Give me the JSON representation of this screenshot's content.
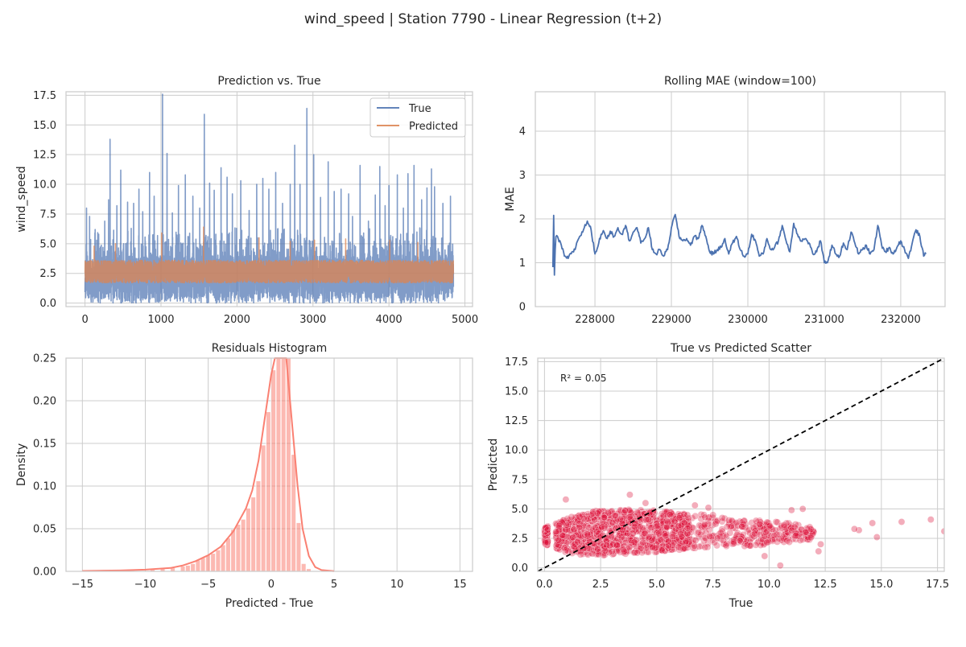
{
  "figure": {
    "suptitle": "wind_speed | Station 7790 - Linear Regression (t+2)"
  },
  "chart_data": [
    {
      "type": "line",
      "title": "Prediction vs. True",
      "xlabel": "",
      "ylabel": "wind_speed",
      "xlim": [
        -250,
        5100
      ],
      "ylim": [
        -0.3,
        17.8
      ],
      "xticks": [
        0,
        1000,
        2000,
        3000,
        4000,
        5000
      ],
      "xticklabels": [
        "0",
        "1000",
        "2000",
        "3000",
        "4000",
        "5000"
      ],
      "yticks": [
        0,
        2.5,
        5,
        7.5,
        10,
        12.5,
        15,
        17.5
      ],
      "yticklabels": [
        "0.0",
        "2.5",
        "5.0",
        "7.5",
        "10.0",
        "12.5",
        "15.0",
        "17.5"
      ],
      "grid": true,
      "legend": "upper right",
      "n_points": 4850,
      "series": [
        {
          "name": "True",
          "color": "#4c72b0",
          "peaks": [
            [
              20,
              8.0
            ],
            [
              60,
              7.3
            ],
            [
              180,
              5.8
            ],
            [
              260,
              6.9
            ],
            [
              310,
              8.7
            ],
            [
              330,
              13.8
            ],
            [
              420,
              8.2
            ],
            [
              470,
              11.2
            ],
            [
              560,
              8.5
            ],
            [
              640,
              8.4
            ],
            [
              710,
              9.6
            ],
            [
              760,
              7.7
            ],
            [
              850,
              11.0
            ],
            [
              910,
              9.0
            ],
            [
              1020,
              17.6
            ],
            [
              1080,
              12.6
            ],
            [
              1150,
              7.6
            ],
            [
              1230,
              9.9
            ],
            [
              1320,
              10.8
            ],
            [
              1420,
              9.0
            ],
            [
              1510,
              8.0
            ],
            [
              1570,
              15.9
            ],
            [
              1640,
              10.1
            ],
            [
              1700,
              9.5
            ],
            [
              1790,
              11.4
            ],
            [
              1870,
              10.6
            ],
            [
              1940,
              9.2
            ],
            [
              2050,
              10.3
            ],
            [
              2160,
              7.8
            ],
            [
              2260,
              10.0
            ],
            [
              2340,
              10.5
            ],
            [
              2420,
              9.6
            ],
            [
              2510,
              11.0
            ],
            [
              2600,
              8.4
            ],
            [
              2700,
              10.0
            ],
            [
              2760,
              13.3
            ],
            [
              2830,
              10.0
            ],
            [
              2920,
              16.4
            ],
            [
              3010,
              12.5
            ],
            [
              3100,
              8.9
            ],
            [
              3200,
              11.9
            ],
            [
              3280,
              9.4
            ],
            [
              3370,
              9.6
            ],
            [
              3470,
              9.2
            ],
            [
              3520,
              7.3
            ],
            [
              3620,
              11.6
            ],
            [
              3730,
              6.9
            ],
            [
              3820,
              9.1
            ],
            [
              3880,
              11.5
            ],
            [
              3950,
              8.2
            ],
            [
              4000,
              9.9
            ],
            [
              4110,
              10.8
            ],
            [
              4190,
              8.0
            ],
            [
              4250,
              10.9
            ],
            [
              4330,
              11.6
            ],
            [
              4430,
              8.7
            ],
            [
              4500,
              9.7
            ],
            [
              4560,
              11.3
            ],
            [
              4600,
              9.8
            ],
            [
              4710,
              8.4
            ],
            [
              4810,
              9.0
            ]
          ]
        },
        {
          "name": "Predicted",
          "color": "#dd8452",
          "peaks": [
            [
              120,
              4.8
            ],
            [
              400,
              5.0
            ],
            [
              1010,
              5.9
            ],
            [
              1560,
              6.4
            ],
            [
              2290,
              5.5
            ],
            [
              2700,
              5.2
            ],
            [
              3020,
              5.3
            ],
            [
              3430,
              5.4
            ],
            [
              4010,
              5.3
            ],
            [
              4380,
              5.1
            ]
          ]
        }
      ]
    },
    {
      "type": "line",
      "title": "Rolling MAE (window=100)",
      "xlabel": "",
      "ylabel": "MAE",
      "xlim": [
        227220,
        232580
      ],
      "ylim": [
        0,
        4.9
      ],
      "xticks": [
        228000,
        229000,
        230000,
        231000,
        232000
      ],
      "xticklabels": [
        "228000",
        "229000",
        "230000",
        "231000",
        "232000"
      ],
      "yticks": [
        0,
        1,
        2,
        3,
        4
      ],
      "yticklabels": [
        "0",
        "1",
        "2",
        "3",
        "4"
      ],
      "grid": true,
      "series": [
        {
          "name": "",
          "color": "#4c72b0",
          "x": [
            227450,
            227460,
            227470,
            227480,
            227490,
            227520,
            227560,
            227600,
            227650,
            227700,
            227740,
            227760,
            227800,
            227850,
            227900,
            227950,
            228000,
            228050,
            228080,
            228120,
            228160,
            228200,
            228250,
            228300,
            228350,
            228400,
            228450,
            228500,
            228550,
            228600,
            228650,
            228700,
            228750,
            228800,
            228850,
            228900,
            228950,
            229000,
            229050,
            229100,
            229150,
            229200,
            229250,
            229300,
            229350,
            229400,
            229450,
            229500,
            229550,
            229600,
            229650,
            229700,
            229750,
            229800,
            229850,
            229900,
            229950,
            230000,
            230050,
            230100,
            230150,
            230200,
            230250,
            230300,
            230350,
            230400,
            230450,
            230500,
            230550,
            230600,
            230650,
            230700,
            230750,
            230800,
            230850,
            230900,
            230950,
            231000,
            231050,
            231100,
            231150,
            231200,
            231250,
            231300,
            231350,
            231400,
            231450,
            231500,
            231550,
            231600,
            231650,
            231700,
            231750,
            231800,
            231850,
            231900,
            231950,
            232000,
            232050,
            232100,
            232150,
            232200,
            232250,
            232300,
            232330
          ],
          "y": [
            0.9,
            2.08,
            0.72,
            1.3,
            1.6,
            1.55,
            1.4,
            1.15,
            1.1,
            1.25,
            1.3,
            1.45,
            1.6,
            1.75,
            1.95,
            1.75,
            1.2,
            1.45,
            1.65,
            1.7,
            1.55,
            1.72,
            1.6,
            1.8,
            1.65,
            1.85,
            1.5,
            1.7,
            1.8,
            1.45,
            1.55,
            1.8,
            1.3,
            1.2,
            1.3,
            1.15,
            1.3,
            1.8,
            2.1,
            1.6,
            1.5,
            1.55,
            1.4,
            1.6,
            1.55,
            1.85,
            1.6,
            1.25,
            1.2,
            1.3,
            1.35,
            1.55,
            1.2,
            1.45,
            1.6,
            1.3,
            1.15,
            1.2,
            1.65,
            1.5,
            1.15,
            1.2,
            1.55,
            1.3,
            1.35,
            1.5,
            1.85,
            1.5,
            1.25,
            1.9,
            1.65,
            1.5,
            1.55,
            1.45,
            1.2,
            1.25,
            1.5,
            1.0,
            1.05,
            1.4,
            1.2,
            1.15,
            1.45,
            1.3,
            1.7,
            1.45,
            1.2,
            1.3,
            1.4,
            1.2,
            1.3,
            1.85,
            1.4,
            1.25,
            1.35,
            1.2,
            1.35,
            1.5,
            1.3,
            1.1,
            1.45,
            1.75,
            1.6,
            1.15,
            1.2
          ]
        }
      ]
    },
    {
      "type": "bar",
      "title": "Residuals Histogram",
      "xlabel": "Predicted - True",
      "ylabel": "Density",
      "xlim": [
        -16.3,
        16.0
      ],
      "ylim": [
        0,
        0.25
      ],
      "xticks": [
        -15,
        -10,
        -5,
        0,
        5,
        10,
        15
      ],
      "xticklabels": [
        "−15",
        "−10",
        "−5",
        "0",
        "5",
        "10",
        "15"
      ],
      "yticks": [
        0,
        0.05,
        0.1,
        0.15,
        0.2,
        0.25
      ],
      "yticklabels": [
        "0.00",
        "0.05",
        "0.10",
        "0.15",
        "0.20",
        "0.25"
      ],
      "grid": true,
      "bar_color": "#fa8072",
      "kde_color": "#fa8072",
      "bins": [
        [
          -14.8,
          -14.4,
          0.001
        ],
        [
          -11.2,
          -10.8,
          0.001
        ],
        [
          -9.6,
          -9.2,
          0.002
        ],
        [
          -8.8,
          -8.4,
          0.003
        ],
        [
          -8.0,
          -7.6,
          0.004
        ],
        [
          -7.2,
          -6.8,
          0.006
        ],
        [
          -6.8,
          -6.4,
          0.007
        ],
        [
          -6.4,
          -6.0,
          0.009
        ],
        [
          -6.0,
          -5.6,
          0.013
        ],
        [
          -5.6,
          -5.2,
          0.016
        ],
        [
          -5.2,
          -4.8,
          0.019
        ],
        [
          -4.8,
          -4.4,
          0.021
        ],
        [
          -4.4,
          -4.0,
          0.025
        ],
        [
          -4.0,
          -3.6,
          0.031
        ],
        [
          -3.6,
          -3.2,
          0.039
        ],
        [
          -3.2,
          -2.8,
          0.049
        ],
        [
          -2.8,
          -2.4,
          0.055
        ],
        [
          -2.4,
          -2.0,
          0.061
        ],
        [
          -2.0,
          -1.6,
          0.074
        ],
        [
          -1.6,
          -1.2,
          0.087
        ],
        [
          -1.2,
          -0.8,
          0.106
        ],
        [
          -0.8,
          -0.4,
          0.148
        ],
        [
          -0.4,
          0.0,
          0.187
        ],
        [
          0.0,
          0.4,
          0.236
        ],
        [
          0.4,
          0.8,
          0.25
        ],
        [
          0.8,
          1.2,
          0.25
        ],
        [
          1.2,
          1.6,
          0.25
        ],
        [
          1.6,
          2.0,
          0.137
        ],
        [
          2.0,
          2.4,
          0.057
        ],
        [
          2.4,
          2.8,
          0.009
        ],
        [
          2.8,
          3.2,
          0.003
        ]
      ],
      "kde": [
        [
          -15,
          0.0005
        ],
        [
          -12,
          0.001
        ],
        [
          -10,
          0.002
        ],
        [
          -8,
          0.004
        ],
        [
          -7,
          0.007
        ],
        [
          -6,
          0.012
        ],
        [
          -5,
          0.019
        ],
        [
          -4,
          0.029
        ],
        [
          -3,
          0.047
        ],
        [
          -2,
          0.074
        ],
        [
          -1.5,
          0.095
        ],
        [
          -1,
          0.13
        ],
        [
          -0.5,
          0.18
        ],
        [
          0,
          0.23
        ],
        [
          0.3,
          0.26
        ],
        [
          0.8,
          0.27
        ],
        [
          1.2,
          0.25
        ],
        [
          1.5,
          0.2
        ],
        [
          1.8,
          0.15
        ],
        [
          2.1,
          0.1
        ],
        [
          2.5,
          0.05
        ],
        [
          3,
          0.018
        ],
        [
          3.5,
          0.005
        ],
        [
          4,
          0.0015
        ],
        [
          5,
          0.0003
        ]
      ]
    },
    {
      "type": "scatter",
      "title": "True vs Predicted Scatter",
      "xlabel": "True",
      "ylabel": "Predicted",
      "xlim": [
        -0.3,
        17.8
      ],
      "ylim": [
        -0.3,
        17.8
      ],
      "xticks": [
        0,
        2.5,
        5,
        7.5,
        10,
        12.5,
        15,
        17.5
      ],
      "xticklabels": [
        "0.0",
        "2.5",
        "5.0",
        "7.5",
        "10.0",
        "12.5",
        "15.0",
        "17.5"
      ],
      "yticks": [
        0,
        2.5,
        5,
        7.5,
        10,
        12.5,
        15,
        17.5
      ],
      "yticklabels": [
        "0.0",
        "2.5",
        "5.0",
        "7.5",
        "10.0",
        "12.5",
        "15.0",
        "17.5"
      ],
      "grid": true,
      "annotation": "R² = 0.05",
      "point_color": "#dc143c",
      "identity_line": [
        [
          -0.3,
          -0.3
        ],
        [
          17.8,
          17.8
        ]
      ],
      "cloud": [
        [
          0.0,
          2.0,
          3.4
        ],
        [
          1.0,
          1.3,
          4.2
        ],
        [
          2.0,
          1.0,
          4.8
        ],
        [
          3.0,
          1.1,
          4.9
        ],
        [
          4.0,
          1.2,
          5.0
        ],
        [
          5.0,
          1.3,
          4.9
        ],
        [
          6.0,
          1.5,
          4.6
        ],
        [
          7.0,
          1.7,
          4.7
        ],
        [
          8.0,
          1.8,
          4.3
        ],
        [
          9.0,
          1.8,
          4.0
        ],
        [
          10.0,
          2.0,
          4.0
        ],
        [
          11.0,
          2.2,
          3.8
        ],
        [
          12.0,
          2.4,
          3.4
        ]
      ],
      "outliers": [
        [
          0.95,
          5.8
        ],
        [
          3.8,
          6.2
        ],
        [
          4.5,
          5.5
        ],
        [
          6.7,
          5.3
        ],
        [
          7.3,
          5.1
        ],
        [
          11.5,
          5.0
        ],
        [
          11.0,
          4.9
        ],
        [
          10.5,
          0.2
        ],
        [
          8.7,
          2.3
        ],
        [
          12.2,
          1.4
        ],
        [
          14.0,
          3.2
        ],
        [
          13.8,
          3.3
        ],
        [
          14.8,
          2.6
        ],
        [
          14.6,
          3.8
        ],
        [
          15.9,
          3.9
        ],
        [
          17.2,
          4.1
        ],
        [
          17.8,
          3.1
        ],
        [
          12.3,
          2.0
        ],
        [
          9.8,
          1.0
        ]
      ]
    }
  ]
}
